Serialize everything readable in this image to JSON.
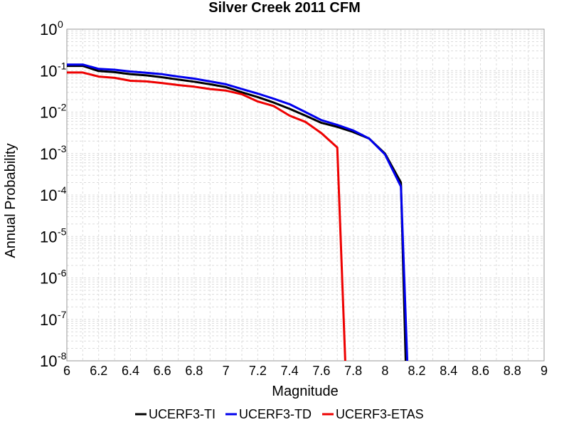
{
  "chart_data": {
    "type": "line",
    "title": "Silver Creek 2011 CFM",
    "xlabel": "Magnitude",
    "ylabel": "Annual Probability",
    "xlim": [
      6,
      9
    ],
    "ylim": [
      1e-08,
      1
    ],
    "yscale": "log",
    "grid": true,
    "legend_position": "bottom",
    "x_ticks": [
      "6",
      "6.2",
      "6.4",
      "6.6",
      "6.8",
      "7",
      "7.2",
      "7.4",
      "7.6",
      "7.8",
      "8",
      "8.2",
      "8.4",
      "8.6",
      "8.8",
      "9"
    ],
    "y_ticks": [
      {
        "base": "10",
        "exp": "0"
      },
      {
        "base": "10",
        "exp": "-1"
      },
      {
        "base": "10",
        "exp": "-2"
      },
      {
        "base": "10",
        "exp": "-3"
      },
      {
        "base": "10",
        "exp": "-4"
      },
      {
        "base": "10",
        "exp": "-5"
      },
      {
        "base": "10",
        "exp": "-6"
      },
      {
        "base": "10",
        "exp": "-7"
      },
      {
        "base": "10",
        "exp": "-8"
      }
    ],
    "series": [
      {
        "name": "UCERF3-TI",
        "color": "#000000",
        "x": [
          6.0,
          6.1,
          6.2,
          6.3,
          6.4,
          6.5,
          6.6,
          6.7,
          6.8,
          6.9,
          7.0,
          7.1,
          7.2,
          7.3,
          7.4,
          7.5,
          7.6,
          7.7,
          7.8,
          7.9,
          8.0,
          8.1,
          8.13
        ],
        "y": [
          0.13,
          0.13,
          0.098,
          0.092,
          0.082,
          0.077,
          0.069,
          0.061,
          0.054,
          0.047,
          0.04,
          0.03,
          0.023,
          0.017,
          0.012,
          0.0082,
          0.0055,
          0.0044,
          0.0033,
          0.0023,
          0.001,
          0.0002,
          1e-08
        ]
      },
      {
        "name": "UCERF3-TD",
        "color": "#0000ee",
        "x": [
          6.0,
          6.1,
          6.2,
          6.3,
          6.4,
          6.5,
          6.6,
          6.7,
          6.8,
          6.9,
          7.0,
          7.1,
          7.2,
          7.3,
          7.4,
          7.5,
          7.6,
          7.7,
          7.8,
          7.9,
          8.0,
          8.1,
          8.14
        ],
        "y": [
          0.14,
          0.14,
          0.11,
          0.105,
          0.095,
          0.089,
          0.082,
          0.072,
          0.064,
          0.055,
          0.047,
          0.036,
          0.028,
          0.021,
          0.0155,
          0.01,
          0.0064,
          0.0049,
          0.0036,
          0.0023,
          0.00095,
          0.00016,
          1e-08
        ]
      },
      {
        "name": "UCERF3-ETAS",
        "color": "#ee0000",
        "x": [
          6.0,
          6.1,
          6.2,
          6.3,
          6.4,
          6.5,
          6.6,
          6.7,
          6.8,
          6.9,
          7.0,
          7.1,
          7.2,
          7.3,
          7.4,
          7.5,
          7.6,
          7.7,
          7.75
        ],
        "y": [
          0.09,
          0.09,
          0.072,
          0.067,
          0.057,
          0.055,
          0.05,
          0.045,
          0.041,
          0.036,
          0.033,
          0.027,
          0.018,
          0.014,
          0.0082,
          0.0058,
          0.0031,
          0.0014,
          1e-08
        ]
      }
    ]
  }
}
